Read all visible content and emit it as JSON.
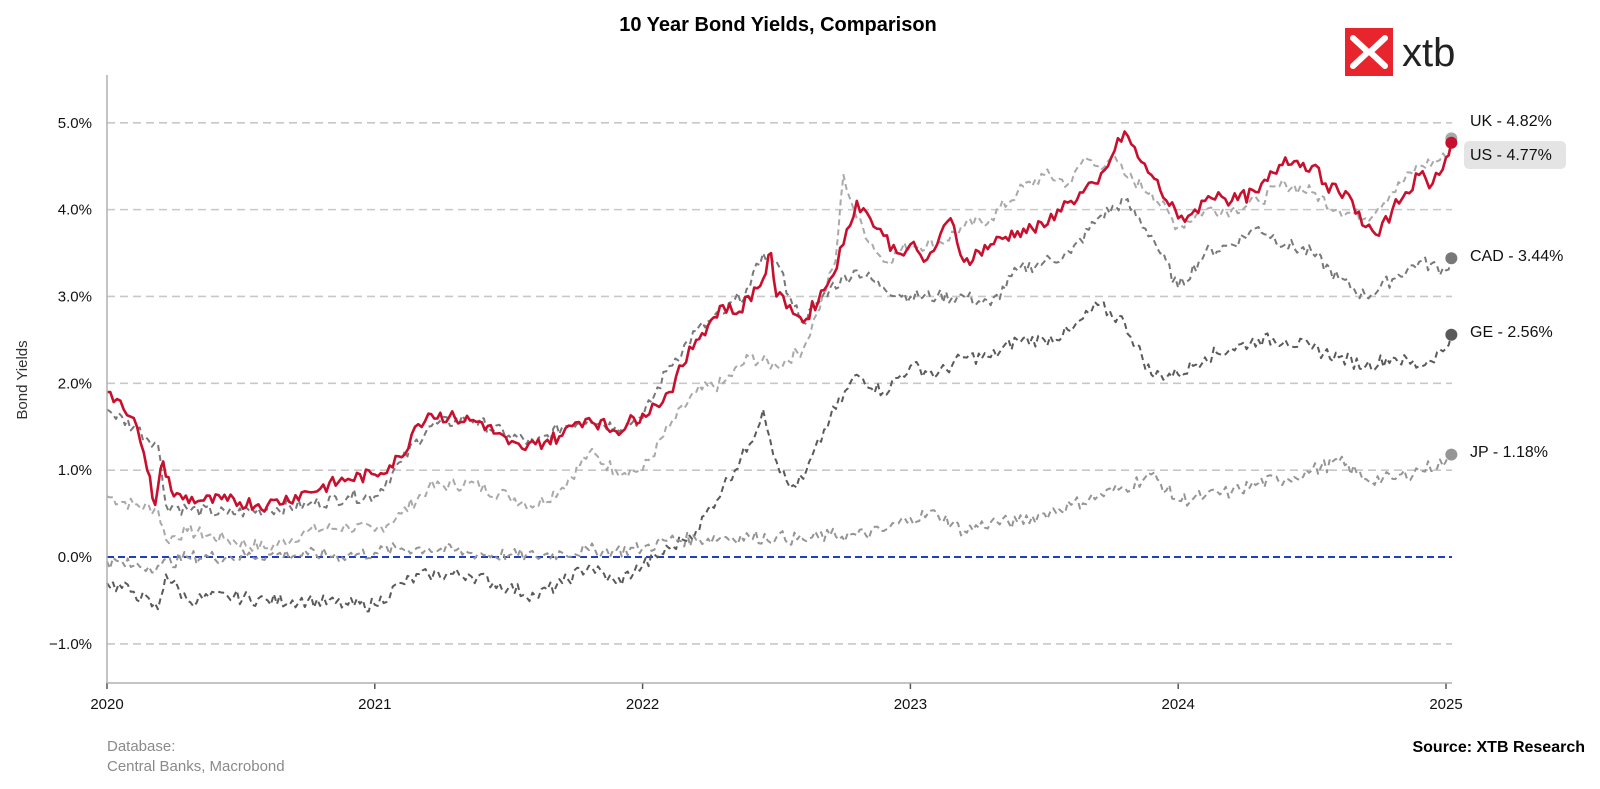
{
  "header": {
    "title": "10 Year Bond Yields, Comparison",
    "logo_text": "xtb"
  },
  "footer": {
    "database_label": "Database:",
    "database_value": "Central Banks, Macrobond",
    "source": "Source: XTB Research"
  },
  "colors": {
    "us": "#c8102e",
    "uk": "#a9a9a9",
    "cad": "#787878",
    "ge": "#5a5a5a",
    "jp": "#959595",
    "zero_line": "#1f3fbf",
    "grid": "#c8c8c8",
    "logo_bg": "#e8242c"
  },
  "chart_data": {
    "type": "line",
    "title": "10 Year Bond Yields, Comparison",
    "xlabel": "",
    "ylabel": "Bond Yields",
    "xlim": [
      2020.0,
      2025.0
    ],
    "ylim": [
      -1.45,
      5.55
    ],
    "x_ticks": [
      {
        "value": 2020,
        "label": "2020"
      },
      {
        "value": 2021,
        "label": "2021"
      },
      {
        "value": 2022,
        "label": "2022"
      },
      {
        "value": 2023,
        "label": "2023"
      },
      {
        "value": 2024,
        "label": "2024"
      },
      {
        "value": 2025,
        "label": "2025"
      }
    ],
    "y_ticks": [
      {
        "value": 5,
        "label": "5.0%"
      },
      {
        "value": 4,
        "label": "4.0%"
      },
      {
        "value": 3,
        "label": "3.0%"
      },
      {
        "value": 2,
        "label": "2.0%"
      },
      {
        "value": 1,
        "label": "1.0%"
      },
      {
        "value": 0,
        "label": "0.0%"
      },
      {
        "value": -1,
        "label": "−1.0%"
      }
    ],
    "grid": "horizontal dashed",
    "zero_line": 0,
    "series": [
      {
        "name": "UK",
        "end_label": "UK - 4.82%",
        "style": "dashed",
        "color_key": "uk",
        "x": [
          2020.0,
          2020.1,
          2020.19,
          2020.22,
          2020.3,
          2020.45,
          2020.6,
          2020.75,
          2020.9,
          2021.0,
          2021.1,
          2021.2,
          2021.35,
          2021.5,
          2021.6,
          2021.7,
          2021.8,
          2021.9,
          2022.0,
          2022.1,
          2022.2,
          2022.3,
          2022.4,
          2022.5,
          2022.6,
          2022.65,
          2022.72,
          2022.75,
          2022.8,
          2022.9,
          2023.0,
          2023.1,
          2023.2,
          2023.3,
          2023.4,
          2023.5,
          2023.6,
          2023.65,
          2023.7,
          2023.75,
          2023.8,
          2023.9,
          2024.0,
          2024.1,
          2024.2,
          2024.3,
          2024.4,
          2024.5,
          2024.6,
          2024.7,
          2024.8,
          2024.9,
          2025.0,
          2025.02
        ],
        "y": [
          0.7,
          0.6,
          0.55,
          0.2,
          0.3,
          0.2,
          0.1,
          0.3,
          0.35,
          0.3,
          0.5,
          0.8,
          0.85,
          0.7,
          0.6,
          0.8,
          1.2,
          1.0,
          1.0,
          1.5,
          1.9,
          2.0,
          2.3,
          2.2,
          2.4,
          2.8,
          3.4,
          4.4,
          3.9,
          3.4,
          3.6,
          3.6,
          3.8,
          3.9,
          4.2,
          4.4,
          4.3,
          4.6,
          4.5,
          4.6,
          4.4,
          4.2,
          3.8,
          4.0,
          4.0,
          4.1,
          4.3,
          4.2,
          4.0,
          3.9,
          4.2,
          4.5,
          4.6,
          4.82
        ]
      },
      {
        "name": "CAD",
        "end_label": "CAD - 3.44%",
        "style": "dashed",
        "color_key": "cad",
        "x": [
          2020.0,
          2020.1,
          2020.19,
          2020.22,
          2020.3,
          2020.45,
          2020.6,
          2020.75,
          2020.9,
          2021.0,
          2021.1,
          2021.2,
          2021.35,
          2021.5,
          2021.6,
          2021.7,
          2021.8,
          2021.9,
          2022.0,
          2022.1,
          2022.2,
          2022.3,
          2022.4,
          2022.45,
          2022.5,
          2022.55,
          2022.6,
          2022.7,
          2022.8,
          2022.9,
          2023.0,
          2023.1,
          2023.2,
          2023.3,
          2023.4,
          2023.5,
          2023.6,
          2023.7,
          2023.8,
          2023.9,
          2024.0,
          2024.1,
          2024.2,
          2024.3,
          2024.4,
          2024.5,
          2024.6,
          2024.7,
          2024.8,
          2024.9,
          2025.0,
          2025.02
        ],
        "y": [
          1.7,
          1.5,
          1.3,
          0.6,
          0.55,
          0.5,
          0.55,
          0.6,
          0.7,
          0.7,
          1.1,
          1.5,
          1.6,
          1.4,
          1.3,
          1.5,
          1.6,
          1.5,
          1.6,
          2.2,
          2.6,
          2.8,
          3.1,
          3.5,
          3.4,
          3.0,
          2.7,
          3.1,
          3.3,
          3.1,
          3.0,
          3.0,
          3.0,
          2.9,
          3.3,
          3.4,
          3.5,
          3.9,
          4.1,
          3.7,
          3.1,
          3.5,
          3.6,
          3.8,
          3.6,
          3.5,
          3.2,
          3.0,
          3.2,
          3.4,
          3.3,
          3.44
        ]
      },
      {
        "name": "GE",
        "end_label": "GE - 2.56%",
        "style": "dashed",
        "color_key": "ge",
        "x": [
          2020.0,
          2020.1,
          2020.19,
          2020.22,
          2020.3,
          2020.45,
          2020.6,
          2020.75,
          2020.9,
          2021.0,
          2021.1,
          2021.2,
          2021.35,
          2021.5,
          2021.6,
          2021.7,
          2021.8,
          2021.9,
          2022.0,
          2022.1,
          2022.15,
          2022.2,
          2022.3,
          2022.4,
          2022.45,
          2022.5,
          2022.55,
          2022.6,
          2022.7,
          2022.8,
          2022.9,
          2023.0,
          2023.1,
          2023.2,
          2023.3,
          2023.4,
          2023.5,
          2023.6,
          2023.7,
          2023.8,
          2023.9,
          2024.0,
          2024.1,
          2024.2,
          2024.3,
          2024.4,
          2024.5,
          2024.6,
          2024.7,
          2024.8,
          2024.9,
          2025.0,
          2025.02
        ],
        "y": [
          -0.3,
          -0.4,
          -0.6,
          -0.2,
          -0.5,
          -0.45,
          -0.5,
          -0.5,
          -0.55,
          -0.55,
          -0.3,
          -0.2,
          -0.2,
          -0.35,
          -0.45,
          -0.3,
          -0.1,
          -0.3,
          -0.1,
          0.1,
          0.2,
          0.3,
          0.8,
          1.3,
          1.7,
          1.1,
          0.8,
          0.9,
          1.6,
          2.1,
          1.9,
          2.2,
          2.1,
          2.3,
          2.3,
          2.5,
          2.5,
          2.6,
          2.9,
          2.7,
          2.1,
          2.1,
          2.3,
          2.4,
          2.5,
          2.5,
          2.4,
          2.3,
          2.2,
          2.3,
          2.2,
          2.4,
          2.56
        ]
      },
      {
        "name": "JP",
        "end_label": "JP - 1.18%",
        "style": "dashed",
        "color_key": "jp",
        "x": [
          2020.0,
          2020.1,
          2020.19,
          2020.3,
          2020.45,
          2020.6,
          2020.75,
          2020.9,
          2021.0,
          2021.1,
          2021.2,
          2021.35,
          2021.5,
          2021.6,
          2021.7,
          2021.8,
          2021.9,
          2022.0,
          2022.1,
          2022.2,
          2022.3,
          2022.4,
          2022.5,
          2022.6,
          2022.7,
          2022.8,
          2022.9,
          2023.0,
          2023.1,
          2023.2,
          2023.3,
          2023.4,
          2023.5,
          2023.6,
          2023.7,
          2023.8,
          2023.9,
          2024.0,
          2024.1,
          2024.2,
          2024.3,
          2024.4,
          2024.5,
          2024.6,
          2024.7,
          2024.8,
          2024.9,
          2025.0,
          2025.02
        ],
        "y": [
          -0.05,
          -0.1,
          -0.1,
          0.0,
          0.0,
          0.03,
          0.03,
          0.02,
          0.05,
          0.1,
          0.1,
          0.05,
          0.02,
          0.01,
          0.05,
          0.08,
          0.07,
          0.1,
          0.2,
          0.2,
          0.23,
          0.23,
          0.23,
          0.2,
          0.25,
          0.25,
          0.3,
          0.45,
          0.5,
          0.3,
          0.4,
          0.4,
          0.5,
          0.6,
          0.7,
          0.8,
          0.95,
          0.65,
          0.7,
          0.75,
          0.85,
          0.9,
          1.0,
          1.1,
          0.9,
          0.9,
          1.0,
          1.1,
          1.18
        ]
      },
      {
        "name": "US",
        "end_label": "US - 4.77%",
        "style": "solid",
        "color_key": "us",
        "x": [
          2020.0,
          2020.05,
          2020.1,
          2020.15,
          2020.18,
          2020.19,
          2020.21,
          2020.25,
          2020.35,
          2020.45,
          2020.6,
          2020.75,
          2020.9,
          2021.0,
          2021.1,
          2021.15,
          2021.2,
          2021.3,
          2021.4,
          2021.5,
          2021.55,
          2021.6,
          2021.7,
          2021.75,
          2021.8,
          2021.9,
          2022.0,
          2022.05,
          2022.1,
          2022.15,
          2022.2,
          2022.3,
          2022.35,
          2022.45,
          2022.48,
          2022.5,
          2022.55,
          2022.6,
          2022.7,
          2022.75,
          2022.8,
          2022.85,
          2022.9,
          2022.95,
          2023.0,
          2023.05,
          2023.1,
          2023.15,
          2023.2,
          2023.3,
          2023.4,
          2023.5,
          2023.55,
          2023.6,
          2023.7,
          2023.75,
          2023.8,
          2023.85,
          2023.9,
          2024.0,
          2024.05,
          2024.1,
          2024.15,
          2024.2,
          2024.3,
          2024.4,
          2024.5,
          2024.55,
          2024.6,
          2024.65,
          2024.7,
          2024.75,
          2024.8,
          2024.85,
          2024.9,
          2024.95,
          2025.0,
          2025.02
        ],
        "y": [
          1.9,
          1.8,
          1.6,
          1.0,
          0.6,
          0.8,
          1.1,
          0.7,
          0.65,
          0.65,
          0.6,
          0.75,
          0.9,
          0.95,
          1.15,
          1.5,
          1.65,
          1.6,
          1.55,
          1.3,
          1.25,
          1.3,
          1.4,
          1.55,
          1.6,
          1.45,
          1.65,
          1.75,
          1.9,
          2.2,
          2.5,
          2.9,
          2.8,
          3.2,
          3.5,
          3.0,
          2.9,
          2.7,
          3.2,
          3.6,
          4.1,
          3.9,
          3.7,
          3.5,
          3.6,
          3.4,
          3.6,
          3.9,
          3.4,
          3.6,
          3.75,
          3.8,
          4.0,
          4.1,
          4.3,
          4.6,
          4.9,
          4.6,
          4.4,
          3.9,
          3.95,
          4.1,
          4.2,
          4.1,
          4.2,
          4.6,
          4.5,
          4.3,
          4.2,
          4.1,
          3.8,
          3.7,
          4.0,
          4.2,
          4.4,
          4.3,
          4.6,
          4.77
        ]
      }
    ]
  }
}
